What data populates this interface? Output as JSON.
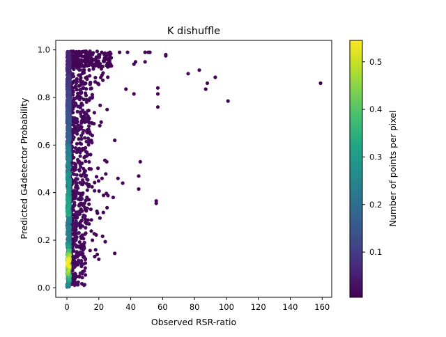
{
  "chart_data": {
    "type": "scatter",
    "title": "K dishuffle",
    "xlabel": "Observed RSR-ratio",
    "ylabel": "Predicted G4detector Probability",
    "xlim": [
      -7,
      166
    ],
    "ylim": [
      -0.04,
      1.04
    ],
    "xticks": [
      0,
      20,
      40,
      60,
      80,
      100,
      120,
      140,
      160
    ],
    "yticks": [
      0.0,
      0.2,
      0.4,
      0.6,
      0.8,
      1.0
    ],
    "grid": false,
    "colorbar": {
      "label": "Number of points per pixel",
      "range": [
        0.005,
        0.545
      ],
      "ticks": [
        0.1,
        0.2,
        0.3,
        0.4,
        0.5
      ],
      "colormap": [
        "#440154",
        "#482475",
        "#414487",
        "#355f8d",
        "#2a788e",
        "#21918c",
        "#22a884",
        "#44bf70",
        "#7ad151",
        "#bddf26",
        "#fde725"
      ]
    },
    "points": [
      [
        159,
        0.86,
        0.01
      ],
      [
        101,
        0.785,
        0.01
      ],
      [
        93,
        0.885,
        0.01
      ],
      [
        88,
        0.86,
        0.01
      ],
      [
        87,
        0.835,
        0.01
      ],
      [
        83,
        0.915,
        0.01
      ],
      [
        76,
        0.9,
        0.01
      ],
      [
        62,
        0.98,
        0.01
      ],
      [
        62,
        0.975,
        0.01
      ],
      [
        57,
        0.84,
        0.01
      ],
      [
        57,
        0.815,
        0.01
      ],
      [
        57,
        0.76,
        0.01
      ],
      [
        56,
        0.365,
        0.01
      ],
      [
        56,
        0.355,
        0.01
      ],
      [
        52,
        0.99,
        0.01
      ],
      [
        51,
        0.99,
        0.01
      ],
      [
        49,
        0.99,
        0.01
      ],
      [
        49,
        0.95,
        0.01
      ],
      [
        46,
        0.53,
        0.01
      ],
      [
        45,
        0.47,
        0.01
      ],
      [
        45,
        0.415,
        0.01
      ],
      [
        43,
        0.95,
        0.01
      ],
      [
        42,
        0.94,
        0.01
      ],
      [
        42,
        0.815,
        0.01
      ],
      [
        38,
        0.99,
        0.01
      ],
      [
        37,
        0.835,
        0.01
      ],
      [
        35,
        0.44,
        0.01
      ],
      [
        33,
        0.99,
        0.01
      ],
      [
        32,
        0.46,
        0.01
      ],
      [
        30,
        0.62,
        0.01
      ],
      [
        29,
        0.38,
        0.01
      ],
      [
        30,
        0.145,
        0.01
      ],
      [
        25,
        0.53,
        0.01
      ],
      [
        22,
        0.46,
        0.01
      ],
      [
        20,
        0.12,
        0.01
      ],
      [
        19,
        0.14,
        0.01
      ],
      [
        18,
        0.16,
        0.01
      ],
      [
        24,
        0.96,
        0.01
      ],
      [
        27,
        0.99,
        0.01
      ],
      [
        14,
        0.5,
        0.01
      ],
      [
        15,
        0.33,
        0.01
      ],
      [
        16,
        0.2,
        0.01
      ]
    ]
  }
}
